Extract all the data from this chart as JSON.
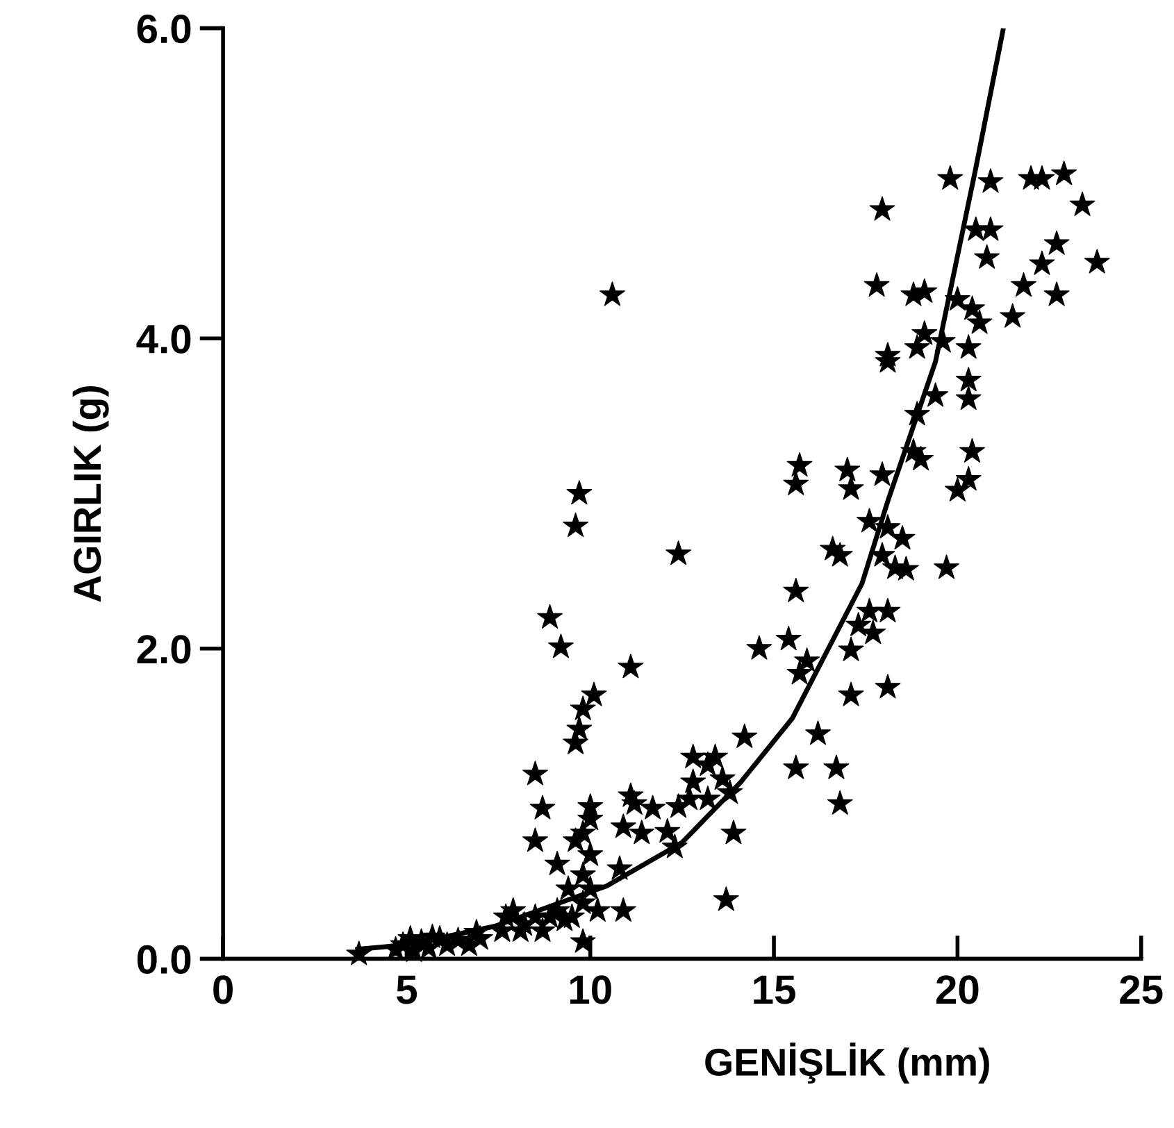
{
  "chart_data": {
    "type": "scatter",
    "xlabel": "GENİŞLİK (mm)",
    "ylabel": "AGIRLIK (g)",
    "xlim": [
      0,
      25
    ],
    "ylim": [
      0,
      6
    ],
    "xticks": [
      0,
      5,
      10,
      15,
      20,
      25
    ],
    "yticks": [
      {
        "value": 0,
        "label": "0.0"
      },
      {
        "value": 2.0,
        "label": "2.0"
      },
      {
        "value": 4.0,
        "label": "4.0"
      },
      {
        "value": 6.0,
        "label": "6.0"
      }
    ],
    "grid": false,
    "legend": false,
    "series": [
      {
        "color": "#000000",
        "marker": "star",
        "x": [
          20.9,
          22.0,
          22.3,
          22.9,
          23.4,
          23.8,
          22.7,
          22.3,
          21.8,
          22.7,
          21.5,
          20.8,
          20.5,
          20.9,
          19.8,
          17.95,
          17.8,
          18.8,
          19.1,
          19.1,
          19.6,
          20.0,
          20.4,
          20.6,
          20.3,
          18.9,
          18.1,
          18.1,
          20.3,
          20.3,
          19.4,
          18.9,
          18.8,
          19.0,
          20.4,
          20.3,
          20.0,
          15.7,
          15.6,
          17.0,
          17.1,
          17.95,
          16.6,
          16.8,
          17.6,
          18.1,
          18.5,
          19.7,
          18.3,
          18.6,
          17.95,
          17.6,
          17.3,
          17.7,
          18.1,
          17.1,
          15.6,
          15.4,
          15.9,
          15.7,
          14.6,
          17.1,
          18.1,
          16.2,
          15.6,
          16.7,
          16.8,
          14.2,
          13.9,
          13.7,
          12.8,
          13.2,
          13.4,
          13.6,
          13.8,
          13.2,
          12.7,
          12.8,
          12.4,
          12.1,
          12.3,
          11.7,
          11.2,
          11.1,
          10.9,
          11.4,
          10.8,
          10.9,
          12.4,
          11.1,
          10.6,
          9.7,
          9.6,
          8.9,
          9.2,
          10.1,
          9.8,
          9.7,
          9.6,
          8.5,
          8.7,
          8.5,
          9.1,
          9.8,
          10.0,
          10.0,
          10.0,
          9.8,
          10.0,
          9.8,
          10.2,
          9.5,
          9.8,
          9.4,
          9.6,
          7.7,
          7.9,
          8.2,
          8.5,
          8.9,
          9.1,
          8.1,
          7.6,
          8.7,
          9.3,
          3.7,
          4.7,
          4.9,
          5.2,
          5.4,
          5.6,
          5.9,
          6.1,
          6.4,
          6.7,
          7.0,
          5.1,
          5.7,
          6.9
        ],
        "values": [
          5.01,
          5.03,
          5.03,
          5.06,
          4.86,
          4.49,
          4.61,
          4.48,
          4.34,
          4.28,
          4.14,
          4.52,
          4.7,
          4.7,
          5.03,
          4.83,
          4.34,
          4.28,
          4.3,
          4.03,
          3.98,
          4.25,
          4.19,
          4.1,
          3.94,
          3.94,
          3.89,
          3.85,
          3.73,
          3.61,
          3.63,
          3.51,
          3.27,
          3.22,
          3.27,
          3.09,
          3.02,
          3.18,
          3.06,
          3.15,
          3.03,
          3.12,
          2.64,
          2.6,
          2.82,
          2.78,
          2.71,
          2.52,
          2.52,
          2.51,
          2.6,
          2.24,
          2.15,
          2.1,
          2.24,
          1.99,
          2.37,
          2.06,
          1.92,
          1.84,
          2.0,
          1.7,
          1.75,
          1.45,
          1.23,
          1.23,
          1.0,
          1.43,
          0.81,
          0.38,
          1.3,
          1.25,
          1.3,
          1.16,
          1.07,
          1.03,
          1.03,
          1.14,
          0.98,
          0.82,
          0.72,
          0.97,
          1.0,
          1.05,
          0.85,
          0.81,
          0.58,
          0.31,
          2.61,
          1.88,
          4.28,
          3.0,
          2.79,
          2.2,
          2.01,
          1.7,
          1.61,
          1.48,
          1.39,
          1.19,
          0.97,
          0.76,
          0.61,
          0.81,
          0.98,
          0.9,
          0.67,
          0.54,
          0.45,
          0.36,
          0.31,
          0.27,
          0.11,
          0.45,
          0.76,
          0.27,
          0.31,
          0.22,
          0.27,
          0.27,
          0.31,
          0.18,
          0.18,
          0.18,
          0.25,
          0.03,
          0.06,
          0.09,
          0.05,
          0.11,
          0.07,
          0.13,
          0.09,
          0.12,
          0.09,
          0.13,
          0.13,
          0.14,
          0.17
        ]
      },
      {
        "type": "line",
        "color": "#000000",
        "marker": "none",
        "line_style": "solid",
        "x": [
          3.6,
          5,
          7.4,
          10.45,
          12.5,
          14.1,
          15.5,
          17.4,
          18.1,
          19.4,
          20.5,
          21.25
        ],
        "values": [
          0.06,
          0.09,
          0.21,
          0.47,
          0.75,
          1.14,
          1.55,
          2.42,
          2.95,
          3.85,
          5.1,
          6.0
        ]
      }
    ]
  }
}
